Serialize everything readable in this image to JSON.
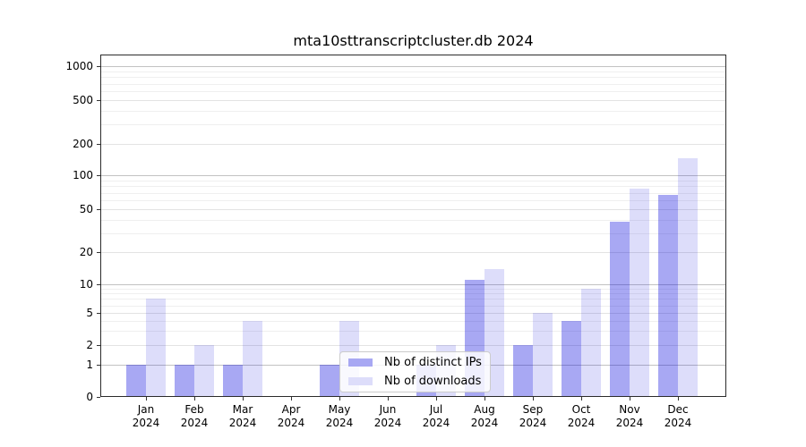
{
  "figure": {
    "background": "#ffffff"
  },
  "chart_data": {
    "type": "bar",
    "title": "mta10sttranscriptcluster.db 2024",
    "x": {
      "months": [
        "Jan",
        "Feb",
        "Mar",
        "Apr",
        "May",
        "Jun",
        "Jul",
        "Aug",
        "Sep",
        "Oct",
        "Nov",
        "Dec"
      ],
      "year": "2024"
    },
    "series": [
      {
        "name": "Nb of distinct IPs",
        "color_hex": "#a8a8f3",
        "bar_color": "rgba(0,0,220,0.34)",
        "values": [
          1,
          1,
          1,
          0,
          1,
          0,
          1,
          11,
          2,
          4,
          38,
          67
        ]
      },
      {
        "name": "Nb of downloads",
        "color_hex": "#ddddfa",
        "bar_color": "rgba(0,0,220,0.135)",
        "values": [
          7,
          2,
          4,
          0,
          4,
          0,
          2,
          14,
          5,
          9,
          76,
          147
        ]
      }
    ],
    "y_axis": {
      "scale": "symlog",
      "ticks": [
        0,
        1,
        2,
        5,
        10,
        20,
        50,
        100,
        200,
        500,
        1000
      ],
      "range": [
        0,
        1000
      ]
    },
    "grid": true,
    "legend": {
      "position": "lower-center"
    }
  }
}
